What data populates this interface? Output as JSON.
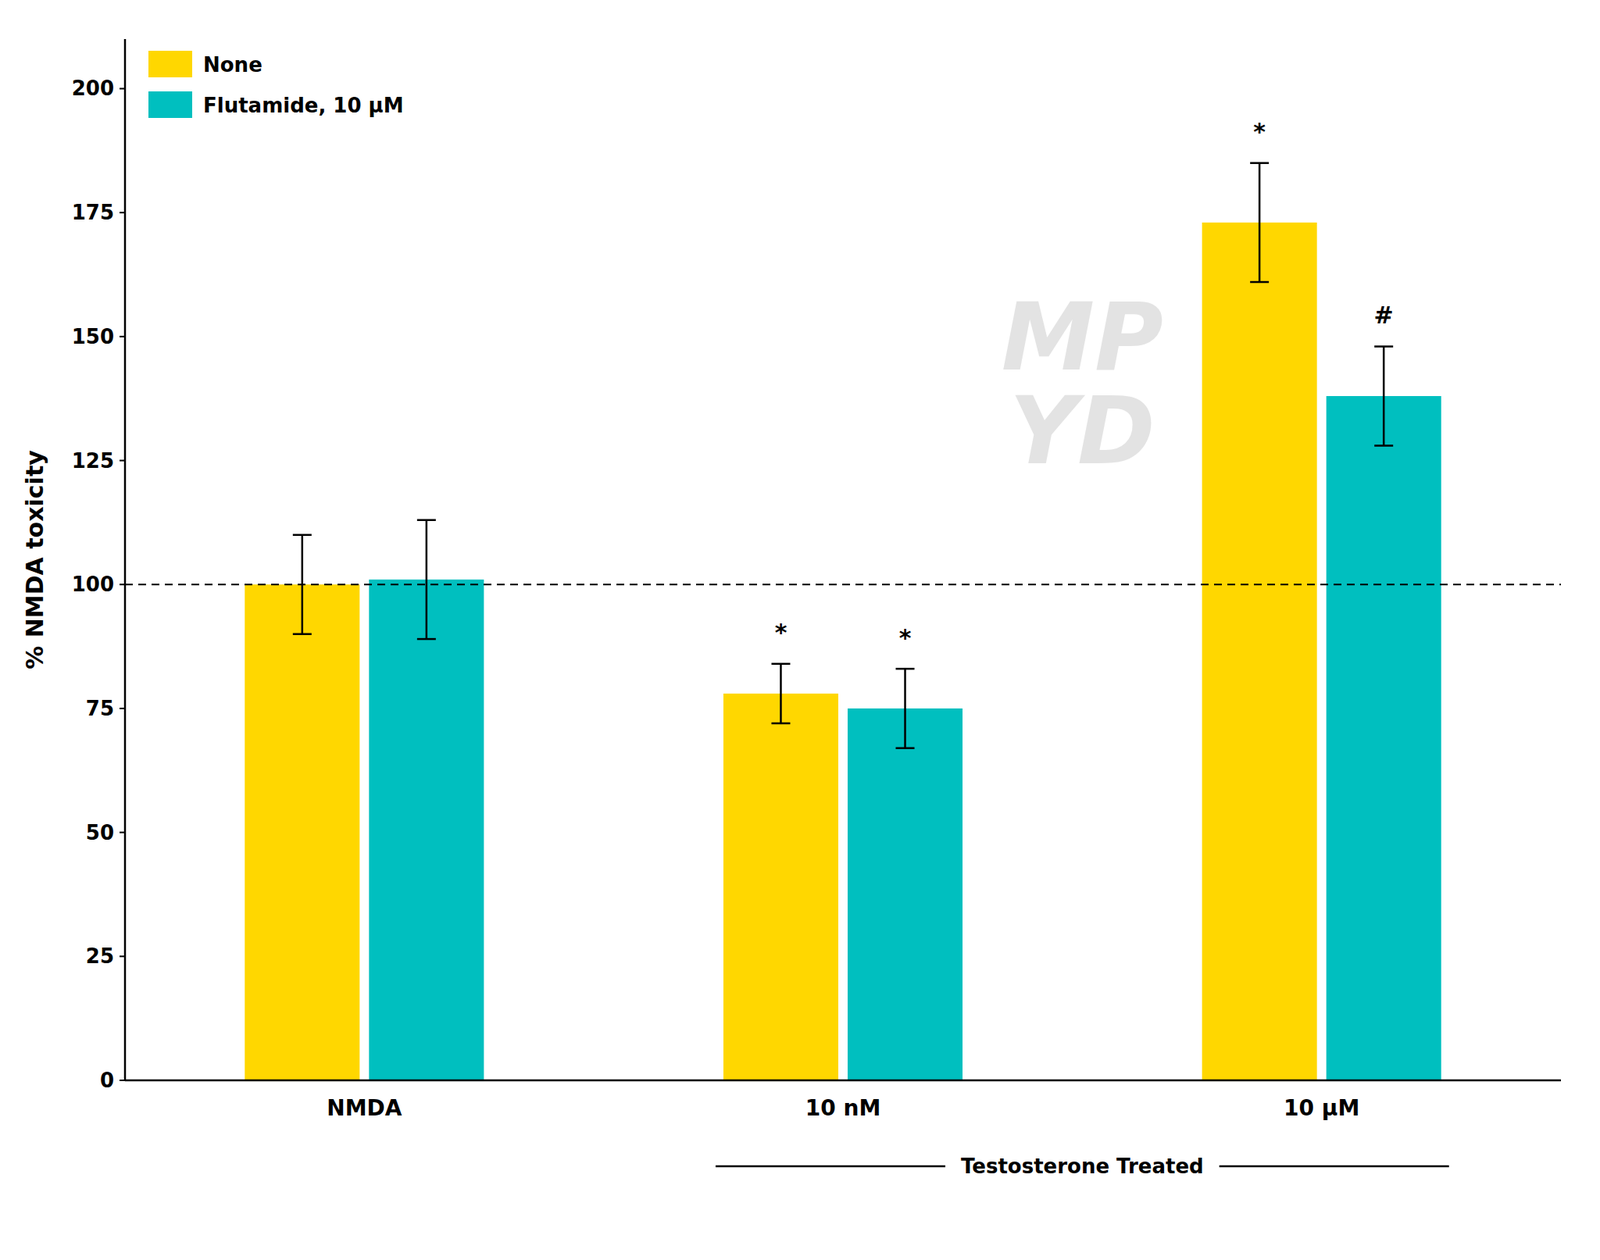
{
  "chart_data": {
    "type": "bar",
    "categories": [
      "NMDA",
      "10 nM",
      "10 μM"
    ],
    "series": [
      {
        "name": "None",
        "color": "#FFD700",
        "values": [
          100,
          78,
          173
        ],
        "errors": [
          10,
          6,
          12
        ],
        "annotations": [
          null,
          "*",
          "*"
        ]
      },
      {
        "name": "Flutamide, 10 μM",
        "color": "#00BFBF",
        "values": [
          101,
          75,
          138
        ],
        "errors": [
          12,
          8,
          10
        ],
        "annotations": [
          null,
          "*",
          "#"
        ]
      }
    ],
    "ylabel": "% NMDA toxicity",
    "xlabel": "Testosterone Treated",
    "reference_line": 100,
    "watermark": "MP\nYD",
    "ylim": [
      0,
      210
    ],
    "yticks": [
      0,
      25,
      50,
      75,
      100,
      125,
      150,
      175,
      200
    ],
    "legend": "upper left",
    "grid": false
  }
}
